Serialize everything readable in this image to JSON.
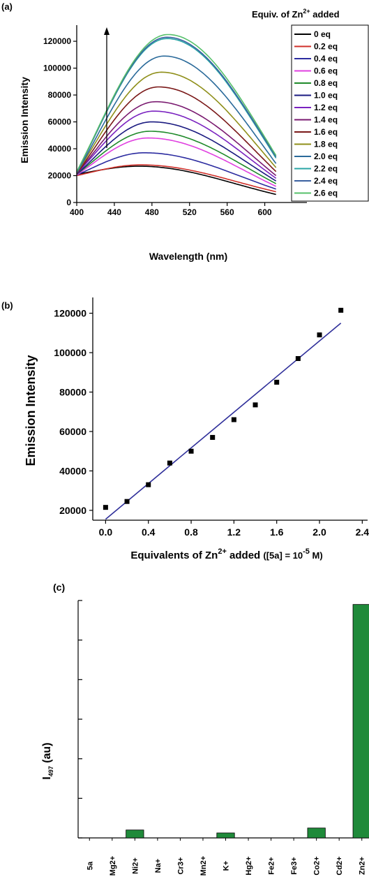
{
  "panels": {
    "a": {
      "label": "(a)"
    },
    "b": {
      "label": "(b)"
    },
    "c": {
      "label": "(c)"
    }
  },
  "chart_data": [
    {
      "type": "line",
      "panel": "(a)",
      "xlabel": "Wavelength (nm)",
      "ylabel": "Emission Intensity",
      "legend_title_prefix": "Equiv. of Zn",
      "legend_title_sup": "2+",
      "legend_title_suffix": " added",
      "legend_position": "top-right",
      "xlim": [
        400,
        630
      ],
      "ylim": [
        0,
        132000
      ],
      "xticks": [
        "400",
        "440",
        "480",
        "520",
        "560",
        "600"
      ],
      "yticks": [
        "0",
        "20000",
        "40000",
        "60000",
        "80000",
        "100000",
        "120000"
      ],
      "arrow_direction": "up",
      "series": [
        {
          "name": "0 eq",
          "color": "#000000",
          "peak_x": 466,
          "peak_y": 27000,
          "start_y": 21000,
          "end_y": 6000
        },
        {
          "name": "0.2 eq",
          "color": "#d0302a",
          "peak_x": 468,
          "peak_y": 28000,
          "start_y": 20000,
          "end_y": 8000
        },
        {
          "name": "0.4 eq",
          "color": "#2c2ca0",
          "peak_x": 472,
          "peak_y": 37000,
          "start_y": 20500,
          "end_y": 10000
        },
        {
          "name": "0.6 eq",
          "color": "#e040e0",
          "peak_x": 476,
          "peak_y": 48000,
          "start_y": 20500,
          "end_y": 12000
        },
        {
          "name": "0.8 eq",
          "color": "#1f8a2a",
          "peak_x": 478,
          "peak_y": 53000,
          "start_y": 21000,
          "end_y": 14000
        },
        {
          "name": "1.0 eq",
          "color": "#1a1a80",
          "peak_x": 480,
          "peak_y": 60000,
          "start_y": 21000,
          "end_y": 16000
        },
        {
          "name": "1.2 eq",
          "color": "#7a22c0",
          "peak_x": 482,
          "peak_y": 68000,
          "start_y": 21500,
          "end_y": 18000
        },
        {
          "name": "1.4 eq",
          "color": "#7a1a70",
          "peak_x": 484,
          "peak_y": 75000,
          "start_y": 21500,
          "end_y": 20000
        },
        {
          "name": "1.6 eq",
          "color": "#7a1818",
          "peak_x": 487,
          "peak_y": 86000,
          "start_y": 21500,
          "end_y": 23000
        },
        {
          "name": "1.8 eq",
          "color": "#8f8f1a",
          "peak_x": 490,
          "peak_y": 97000,
          "start_y": 22000,
          "end_y": 26000
        },
        {
          "name": "2.0 eq",
          "color": "#2a6a9a",
          "peak_x": 493,
          "peak_y": 109000,
          "start_y": 22000,
          "end_y": 29000
        },
        {
          "name": "2.2 eq",
          "color": "#2aa5a5",
          "peak_x": 496,
          "peak_y": 122000,
          "start_y": 22500,
          "end_y": 33000
        },
        {
          "name": "2.4 eq",
          "color": "#3a60a0",
          "peak_x": 496,
          "peak_y": 123000,
          "start_y": 22500,
          "end_y": 34000
        },
        {
          "name": "2.6 eq",
          "color": "#55c06a",
          "peak_x": 497,
          "peak_y": 125000,
          "start_y": 23000,
          "end_y": 35000
        }
      ]
    },
    {
      "type": "scatter",
      "panel": "(b)",
      "xlabel_prefix": "Equivalents of Zn",
      "xlabel_sup": "2+",
      "xlabel_mid": " added ",
      "xlabel_paren_prefix": "([5a] = 10",
      "xlabel_paren_sup": "-5",
      "xlabel_paren_suffix": " M)",
      "ylabel": "Emission Intensity",
      "xlim": [
        -0.12,
        2.45
      ],
      "ylim": [
        15000,
        128000
      ],
      "xticks": [
        "0.0",
        "0.4",
        "0.8",
        "1.2",
        "1.6",
        "2.0",
        "2.4"
      ],
      "yticks": [
        "20000",
        "40000",
        "60000",
        "80000",
        "100000",
        "120000"
      ],
      "x": [
        0.0,
        0.2,
        0.4,
        0.6,
        0.8,
        1.0,
        1.2,
        1.4,
        1.6,
        1.8,
        2.0,
        2.2
      ],
      "y": [
        21500,
        24500,
        33000,
        44000,
        50000,
        57000,
        66000,
        73500,
        85000,
        97000,
        109000,
        121500
      ],
      "fit": {
        "x": [
          0.0,
          2.2
        ],
        "y": [
          15500,
          115000
        ],
        "color": "#2f2f9a"
      }
    },
    {
      "type": "bar",
      "panel": "(c)",
      "ylabel_main": "I",
      "ylabel_sub": "497",
      "ylabel_unit": " (au)",
      "categories": [
        "5a",
        "Mg2+",
        "Ni2+",
        "Na+",
        "Cr3+",
        "Mn2+",
        "K+",
        "Hg2+",
        "Fe2+",
        "Fe3+",
        "Co2+",
        "Cd2+",
        "Zn2+"
      ],
      "values": [
        0,
        0,
        4,
        0,
        0,
        0,
        2.5,
        0,
        0,
        0,
        5,
        0,
        118
      ],
      "ylim": [
        0,
        120
      ],
      "bar_color": "#1f8a3a"
    }
  ]
}
